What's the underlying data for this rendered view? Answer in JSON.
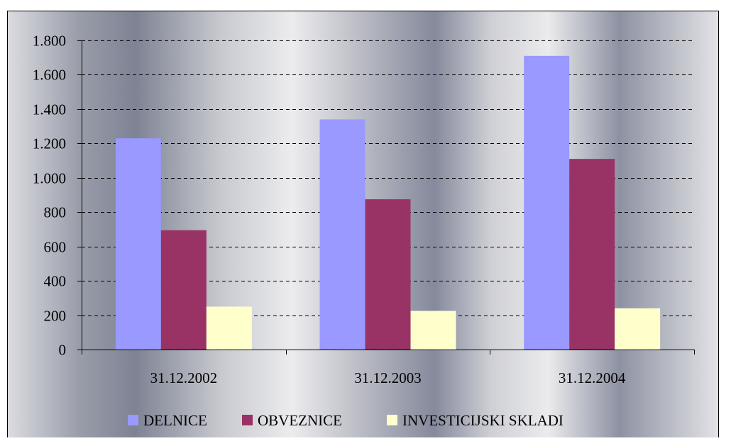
{
  "chart_data": {
    "type": "bar",
    "categories": [
      "31.12.2002",
      "31.12.2003",
      "31.12.2004"
    ],
    "series": [
      {
        "name": "DELNICE",
        "values": [
          1230,
          1340,
          1710
        ],
        "color": "#9999ff"
      },
      {
        "name": "OBVEZNICE",
        "values": [
          695,
          875,
          1110
        ],
        "color": "#993366"
      },
      {
        "name": "INVESTICIJSKI SKLADI",
        "values": [
          250,
          225,
          240
        ],
        "color": "#ffffcc"
      }
    ],
    "ylim": [
      0,
      1800
    ],
    "yticks": [
      0,
      200,
      400,
      600,
      800,
      1000,
      1200,
      1400,
      1600,
      1800
    ],
    "ytick_labels": [
      "0",
      "200",
      "400",
      "600",
      "800",
      "1.000",
      "1.200",
      "1.400",
      "1.600",
      "1.800"
    ],
    "grid": true,
    "legend_position": "bottom",
    "title": "",
    "xlabel": "",
    "ylabel": ""
  }
}
